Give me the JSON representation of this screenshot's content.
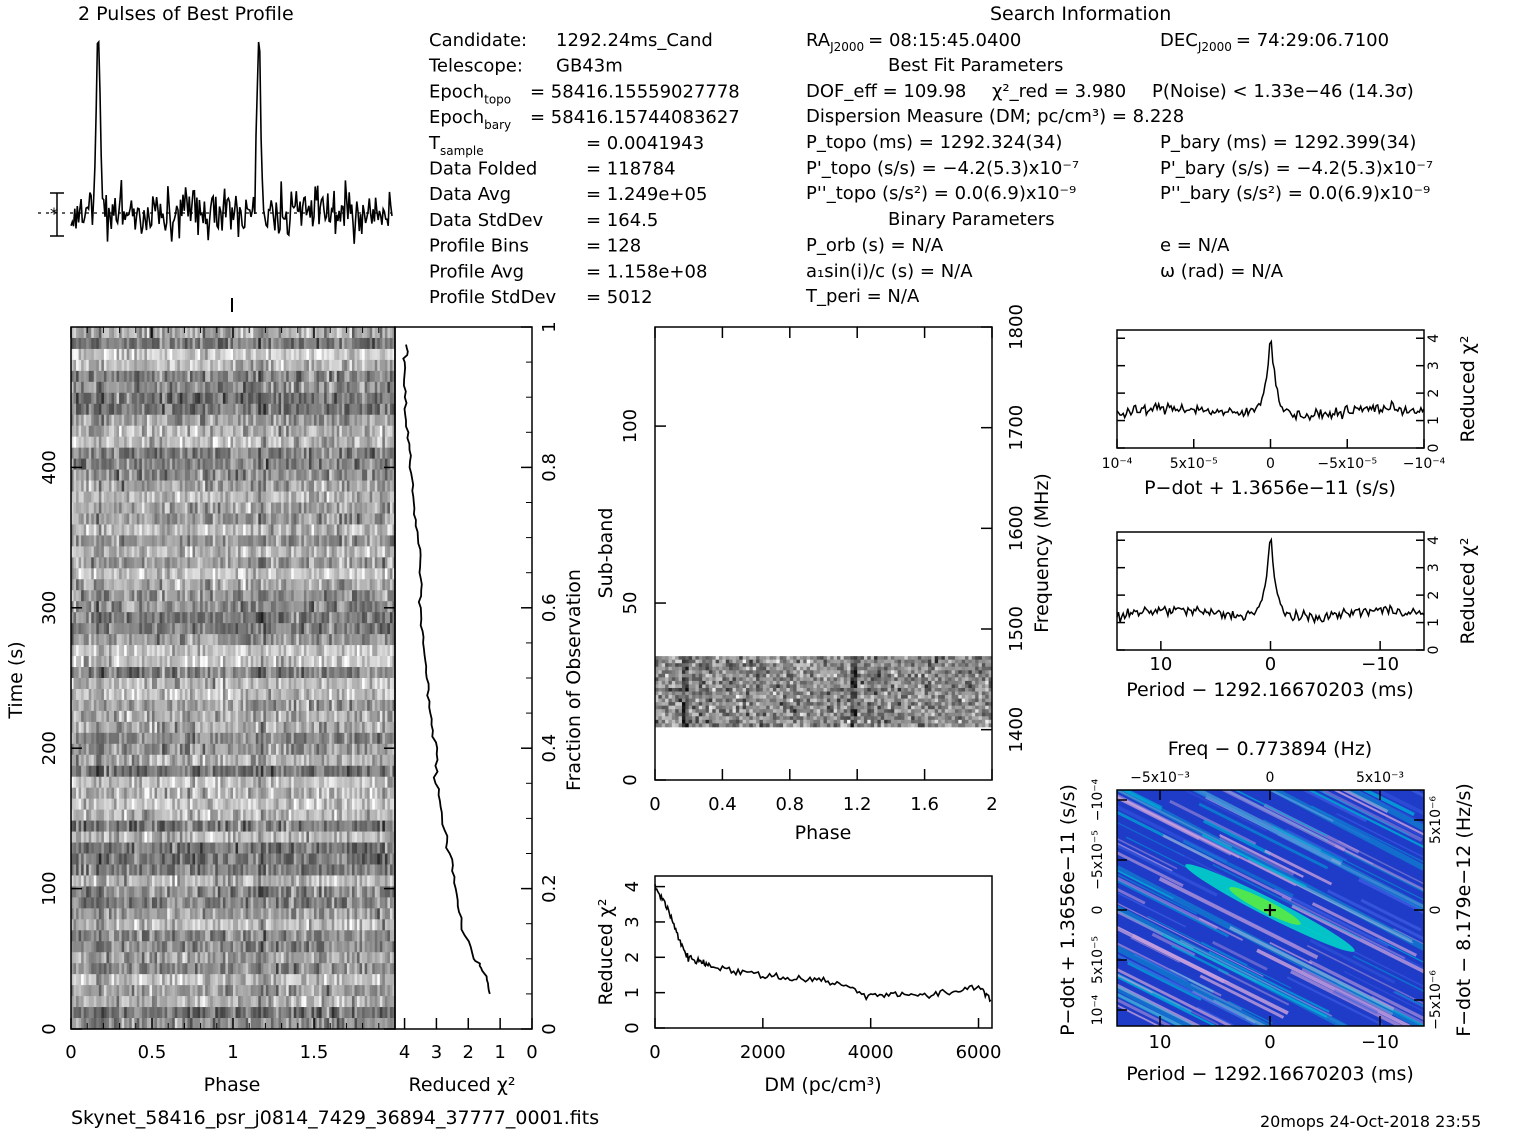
{
  "filename": "Skynet_58416_psr_j0814_7429_36894_37777_0001.fits",
  "footer_stamp": "20mops 24-Oct-2018 23:55",
  "profile_panel": {
    "title": "2 Pulses of Best Profile"
  },
  "candidate_info": [
    {
      "label": "Candidate:",
      "value": "1292.24ms_Cand"
    },
    {
      "label": "Telescope:",
      "value": "GB43m"
    },
    {
      "label": "Epoch",
      "sub": "topo",
      "value": "= 58416.15559027778"
    },
    {
      "label": "Epoch",
      "sub": "bary",
      "value": "= 58416.15744083627"
    },
    {
      "label": "T",
      "sub": "sample",
      "value": "=   0.0041943"
    },
    {
      "label": "Data Folded",
      "value": "=   118784"
    },
    {
      "label": "Data Avg",
      "value": "=   1.249e+05"
    },
    {
      "label": "Data StdDev",
      "value": "=   164.5"
    },
    {
      "label": "Profile Bins",
      "value": "=   128"
    },
    {
      "label": "Profile Avg",
      "value": "=   1.158e+08"
    },
    {
      "label": "Profile StdDev",
      "value": "=   5012"
    }
  ],
  "search_info": {
    "title": "Search Information",
    "ra_label": "RA",
    "ra_sub": "J2000",
    "ra_value": "= 08:15:45.0400",
    "dec_label": "DEC",
    "dec_sub": "J2000",
    "dec_value": "= 74:29:06.7100",
    "best_fit_title": "Best Fit Parameters",
    "dof": "DOF_eff = 109.98",
    "chi2_red": "χ²_red = 3.980",
    "p_noise": "P(Noise) < 1.33e−46   (14.3σ)",
    "dm_line": "Dispersion Measure (DM; pc/cm³) = 8.228",
    "p_topo": "P_topo (ms) =   1292.324(34)",
    "p_bary": "P_bary (ms) =   1292.399(34)",
    "pd_topo": "P'_topo (s/s) = −4.2(5.3)x10⁻⁷",
    "pd_bary": "P'_bary (s/s) = −4.2(5.3)x10⁻⁷",
    "pdd_topo": "P''_topo (s/s²) = 0.0(6.9)x10⁻⁹",
    "pdd_bary": "P''_bary (s/s²) = 0.0(6.9)x10⁻⁹",
    "binary_title": "Binary Parameters",
    "p_orb": "P_orb (s) = N/A",
    "e": "e = N/A",
    "a1sini": "a₁sin(i)/c (s) = N/A",
    "omega": "ω (rad) = N/A",
    "t_peri": "T_peri = N/A"
  },
  "colors": {
    "foreground": "#000000",
    "background": "#ffffff",
    "heat_low": "#1e3cc8",
    "heat_mid": "#00d2c8",
    "heat_high": "#50e650",
    "heat_pink": "#c8a0dc"
  },
  "chart_data": [
    {
      "id": "pulse_profile",
      "type": "line",
      "title": "2 Pulses of Best Profile",
      "xlabel": "",
      "ylabel": "",
      "x_range": [
        0,
        2
      ],
      "peaks_at_phase": [
        0.17,
        1.17
      ],
      "relative_peak_height": 5.5,
      "baseline_noise_sigma": 1.0
    },
    {
      "id": "time_phase",
      "type": "heatmap",
      "xlabel": "Phase",
      "ylabel": "Time (s)",
      "xlim": [
        0,
        2
      ],
      "ylim": [
        0,
        500
      ],
      "x_ticks": [
        "0",
        "0.5",
        "1",
        "1.5"
      ],
      "y_ticks": [
        "0",
        "100",
        "200",
        "300",
        "400"
      ]
    },
    {
      "id": "reduced_chi2_vs_time",
      "type": "line",
      "xlabel": "Reduced χ²",
      "ylabel": "Fraction of Observation",
      "xlim": [
        4.3,
        0
      ],
      "ylim": [
        0,
        1
      ],
      "x_ticks": [
        "4",
        "3",
        "2",
        "1",
        "0"
      ],
      "y_ticks": [
        "0",
        "0.2",
        "0.4",
        "0.6",
        "0.8",
        "1"
      ],
      "x": [
        1.3,
        1.5,
        1.8,
        2.2,
        2.4,
        2.6,
        2.8,
        3.0,
        3.0,
        3.2,
        3.3,
        3.4,
        3.5,
        3.5,
        3.6,
        3.7,
        3.8,
        3.9,
        4.0,
        4.0,
        3.9
      ],
      "y": [
        0.05,
        0.08,
        0.1,
        0.15,
        0.2,
        0.25,
        0.3,
        0.35,
        0.4,
        0.45,
        0.5,
        0.55,
        0.6,
        0.65,
        0.7,
        0.75,
        0.8,
        0.85,
        0.9,
        0.95,
        0.98
      ]
    },
    {
      "id": "subband_phase",
      "type": "heatmap",
      "xlabel": "Phase",
      "ylabel": "Sub-band",
      "y2label": "Frequency (MHz)",
      "xlim": [
        0,
        2
      ],
      "ylim": [
        0,
        128
      ],
      "y2lim": [
        1350,
        1800
      ],
      "x_ticks": [
        "0",
        "0.4",
        "0.8",
        "1.2",
        "1.6",
        "2"
      ],
      "y_ticks": [
        "0",
        "50",
        "100"
      ],
      "y2_ticks": [
        "1400",
        "1500",
        "1600",
        "1700",
        "1800"
      ],
      "occupied_subbands": [
        15,
        35
      ]
    },
    {
      "id": "dm_curve",
      "type": "line",
      "xlabel": "DM (pc/cm³)",
      "ylabel": "Reduced χ²",
      "xlim": [
        0,
        6250
      ],
      "ylim": [
        0,
        4.3
      ],
      "x_ticks": [
        "0",
        "2000",
        "4000",
        "6000"
      ],
      "y_ticks": [
        "0",
        "1",
        "2",
        "3",
        "4"
      ],
      "x": [
        0,
        200,
        400,
        600,
        800,
        1000,
        1500,
        2000,
        2500,
        3000,
        3500,
        4000,
        4500,
        5000,
        5500,
        6000,
        6250
      ],
      "y": [
        4.0,
        3.5,
        2.7,
        2.0,
        1.9,
        1.8,
        1.6,
        1.5,
        1.4,
        1.4,
        1.2,
        0.9,
        1.0,
        0.9,
        1.0,
        1.2,
        0.8
      ]
    },
    {
      "id": "pdot_curve",
      "type": "line",
      "xlabel": "P−dot + 1.3656e−11 (s/s)",
      "ylabel": "Reduced χ²",
      "xlim": [
        0.0001,
        -0.0001
      ],
      "ylim": [
        0,
        4.3
      ],
      "x_ticks": [
        "10⁻⁴",
        "5x10⁻⁵",
        "0",
        "−5x10⁻⁵",
        "−10⁻⁴"
      ],
      "y_ticks": [
        "0",
        "1",
        "2",
        "3",
        "4"
      ],
      "peak_x": 0,
      "peak_y": 4.0,
      "baseline_y": 1.2
    },
    {
      "id": "period_curve",
      "type": "line",
      "xlabel": "Period − 1292.16670203 (ms)",
      "ylabel": "Reduced χ²",
      "xlim": [
        14,
        -14
      ],
      "ylim": [
        0,
        4.3
      ],
      "x_ticks": [
        "10",
        "0",
        "−10"
      ],
      "y_ticks": [
        "0",
        "1",
        "2",
        "3",
        "4"
      ],
      "peak_x": 0,
      "peak_y": 4.0,
      "baseline_y": 1.2
    },
    {
      "id": "p_pdot_plane",
      "type": "heatmap",
      "title": "Freq − 0.773894 (Hz)",
      "xlabel": "Period − 1292.16670203 (ms)",
      "ylabel": "P−dot + 1.3656e−11 (s/s)",
      "y2label": "F−dot − 8.179e−12 (Hz/s)",
      "top_ticks": [
        "−5x10⁻³",
        "0",
        "5x10⁻³"
      ],
      "x_ticks": [
        "10",
        "0",
        "−10"
      ],
      "y_ticks": [
        "10⁻⁴",
        "5x10⁻⁵",
        "0",
        "−5x10⁻⁵",
        "−10⁻⁴"
      ],
      "y2_ticks": [
        "−5x10⁻⁶",
        "0",
        "5x10⁻⁶"
      ],
      "best_fit_x": 0,
      "best_fit_y": 0
    }
  ]
}
